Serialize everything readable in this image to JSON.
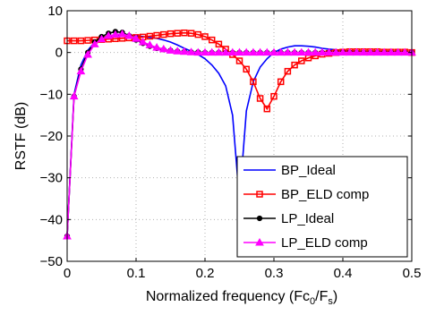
{
  "chart_data": {
    "type": "line",
    "xlabel": "Normalized frequency (Fc",
    "xlabel_sub0": "0",
    "xlabel_mid": "/F",
    "xlabel_sub1": "s",
    "xlabel_end": ")",
    "ylabel": "RSTF (dB)",
    "xlim": [
      0,
      0.5
    ],
    "ylim": [
      -50,
      10
    ],
    "xticks": [
      0,
      0.1,
      0.2,
      0.3,
      0.4,
      0.5
    ],
    "xtick_labels": [
      "0",
      "0.1",
      "0.2",
      "0.3",
      "0.4",
      "0.5"
    ],
    "yticks": [
      -50,
      -40,
      -30,
      -20,
      -10,
      0,
      10
    ],
    "ytick_labels": [
      "−50",
      "−40",
      "−30",
      "−20",
      "−10",
      "0",
      "10"
    ],
    "grid": true,
    "legend_position": "bottom-right",
    "series": [
      {
        "name": "BP_Ideal",
        "color": "#0000ff",
        "marker": "none",
        "x": [
          0,
          0.01,
          0.02,
          0.03,
          0.04,
          0.05,
          0.06,
          0.07,
          0.08,
          0.09,
          0.1,
          0.11,
          0.12,
          0.13,
          0.14,
          0.15,
          0.16,
          0.17,
          0.18,
          0.19,
          0.2,
          0.21,
          0.22,
          0.23,
          0.24,
          0.25,
          0.26,
          0.27,
          0.28,
          0.29,
          0.3,
          0.31,
          0.32,
          0.33,
          0.34,
          0.35,
          0.36,
          0.37,
          0.38,
          0.4,
          0.42,
          0.45,
          0.48,
          0.5
        ],
        "y": [
          -44,
          -10,
          -3,
          0.5,
          2.5,
          3.5,
          4,
          4.2,
          4.3,
          4.2,
          4,
          3.8,
          3.6,
          3.4,
          3,
          2.5,
          1.8,
          1,
          0.3,
          -0.5,
          -1.5,
          -3,
          -5,
          -8,
          -15,
          -35.5,
          -14,
          -7,
          -3.5,
          -1.5,
          0,
          0.8,
          1.3,
          1.6,
          1.6,
          1.5,
          1.3,
          1,
          0.8,
          0.5,
          0.3,
          0.2,
          0.1,
          0
        ]
      },
      {
        "name": "BP_ELD comp",
        "color": "#ff0000",
        "marker": "square",
        "x": [
          0,
          0.01,
          0.02,
          0.03,
          0.04,
          0.05,
          0.06,
          0.07,
          0.08,
          0.09,
          0.1,
          0.11,
          0.12,
          0.13,
          0.14,
          0.15,
          0.16,
          0.17,
          0.18,
          0.19,
          0.2,
          0.21,
          0.22,
          0.23,
          0.24,
          0.25,
          0.26,
          0.27,
          0.28,
          0.29,
          0.3,
          0.31,
          0.32,
          0.33,
          0.34,
          0.35,
          0.36,
          0.37,
          0.38,
          0.39,
          0.4,
          0.41,
          0.42,
          0.43,
          0.44,
          0.45,
          0.46,
          0.47,
          0.48,
          0.49,
          0.5
        ],
        "y": [
          2.8,
          2.8,
          2.8,
          2.9,
          3,
          3.1,
          3.2,
          3.3,
          3.4,
          3.5,
          3.6,
          3.7,
          3.9,
          4.1,
          4.3,
          4.5,
          4.6,
          4.7,
          4.6,
          4.3,
          3.8,
          3,
          2,
          0.8,
          -0.5,
          -2,
          -4,
          -7,
          -11,
          -13.5,
          -10.5,
          -7,
          -4.5,
          -3,
          -2,
          -1.3,
          -0.8,
          -0.4,
          -0.2,
          0,
          0.1,
          0.2,
          0.2,
          0.2,
          0.2,
          0.2,
          0.1,
          0.1,
          0.1,
          0.1,
          0
        ]
      },
      {
        "name": "LP_Ideal",
        "color": "#000000",
        "marker": "circle",
        "x": [
          0,
          0.01,
          0.02,
          0.03,
          0.04,
          0.05,
          0.06,
          0.07,
          0.08,
          0.09,
          0.1,
          0.11,
          0.12,
          0.13,
          0.14,
          0.15,
          0.16,
          0.17,
          0.18,
          0.19,
          0.2,
          0.21,
          0.22,
          0.23,
          0.24,
          0.25,
          0.26,
          0.27,
          0.28,
          0.29,
          0.3,
          0.31,
          0.32,
          0.33,
          0.34,
          0.35,
          0.36,
          0.37,
          0.38,
          0.39,
          0.4,
          0.41,
          0.42,
          0.43,
          0.44,
          0.45,
          0.46,
          0.47,
          0.48,
          0.49,
          0.5
        ],
        "y": [
          -44,
          -10.5,
          -4,
          0,
          2.5,
          3.8,
          4.6,
          5,
          4.8,
          4,
          3,
          2.2,
          1.5,
          1,
          0.7,
          0.5,
          0.3,
          0.2,
          0.1,
          0.1,
          0,
          0,
          0,
          0,
          0,
          0,
          0,
          0,
          0,
          0,
          0,
          0,
          0,
          0,
          0,
          0,
          0,
          0,
          0,
          0,
          0,
          0,
          0,
          0,
          0,
          0,
          0,
          0,
          0,
          0,
          0
        ]
      },
      {
        "name": "LP_ELD comp",
        "color": "#ff00ff",
        "marker": "triangle",
        "x": [
          0,
          0.01,
          0.02,
          0.03,
          0.04,
          0.05,
          0.06,
          0.07,
          0.08,
          0.09,
          0.1,
          0.11,
          0.12,
          0.13,
          0.14,
          0.15,
          0.16,
          0.17,
          0.18,
          0.19,
          0.2,
          0.21,
          0.22,
          0.23,
          0.24,
          0.25,
          0.26,
          0.27,
          0.28,
          0.29,
          0.3,
          0.31,
          0.32,
          0.33,
          0.34,
          0.35,
          0.36,
          0.37,
          0.38,
          0.39,
          0.4,
          0.41,
          0.42,
          0.43,
          0.44,
          0.45,
          0.46,
          0.47,
          0.48,
          0.49,
          0.5
        ],
        "y": [
          -44,
          -10.5,
          -4.5,
          -0.5,
          2,
          3.2,
          4,
          4.3,
          4.4,
          4,
          3.3,
          2.5,
          1.8,
          1.2,
          0.8,
          0.5,
          0.3,
          0.2,
          0.1,
          0,
          0,
          0,
          0,
          0,
          0,
          0,
          0,
          0,
          0,
          0,
          0,
          0,
          0,
          0,
          0,
          0,
          0,
          0,
          0,
          0,
          0,
          0,
          0,
          0,
          0,
          0,
          0,
          0,
          0,
          0,
          0
        ]
      }
    ]
  }
}
